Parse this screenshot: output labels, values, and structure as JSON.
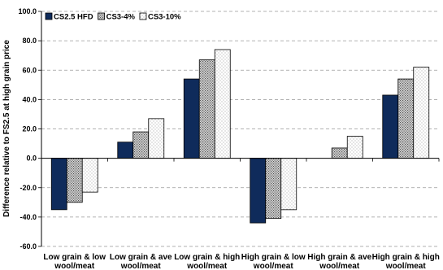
{
  "chart_data": {
    "type": "bar",
    "ylabel": "Difference relative to FS2.5 at high grain price",
    "xlabel": "",
    "ylim": [
      -60,
      100
    ],
    "yticks": [
      "100.0",
      "80.0",
      "60.0",
      "40.0",
      "20.0",
      "0.0",
      "-20.0",
      "-40.0",
      "-60.0"
    ],
    "grid": true,
    "legend_position": "top-left",
    "categories": [
      [
        "Low grain & low",
        "wool/meat"
      ],
      [
        "Low grain & ave",
        "wool/meat"
      ],
      [
        "Low grain & high",
        "wool/meat"
      ],
      [
        "High grain & low",
        "wool/meat"
      ],
      [
        "High grain & ave",
        "wool/meat"
      ],
      [
        "High grain & high",
        "wool/meat"
      ]
    ],
    "series": [
      {
        "name": "CS2.5 HFD",
        "color": "#0f2b5b",
        "pattern": "solid",
        "values": [
          -35,
          11,
          54,
          -44,
          0,
          43
        ]
      },
      {
        "name": "CS3-4%",
        "color": "#8c8c8c",
        "pattern": "dense-dots",
        "values": [
          -30,
          18,
          67,
          -41,
          7,
          54
        ]
      },
      {
        "name": "CS3-10%",
        "color": "#ffffff",
        "pattern": "sparse-dots",
        "values": [
          -23,
          27,
          74,
          -35,
          15,
          62
        ]
      }
    ]
  }
}
